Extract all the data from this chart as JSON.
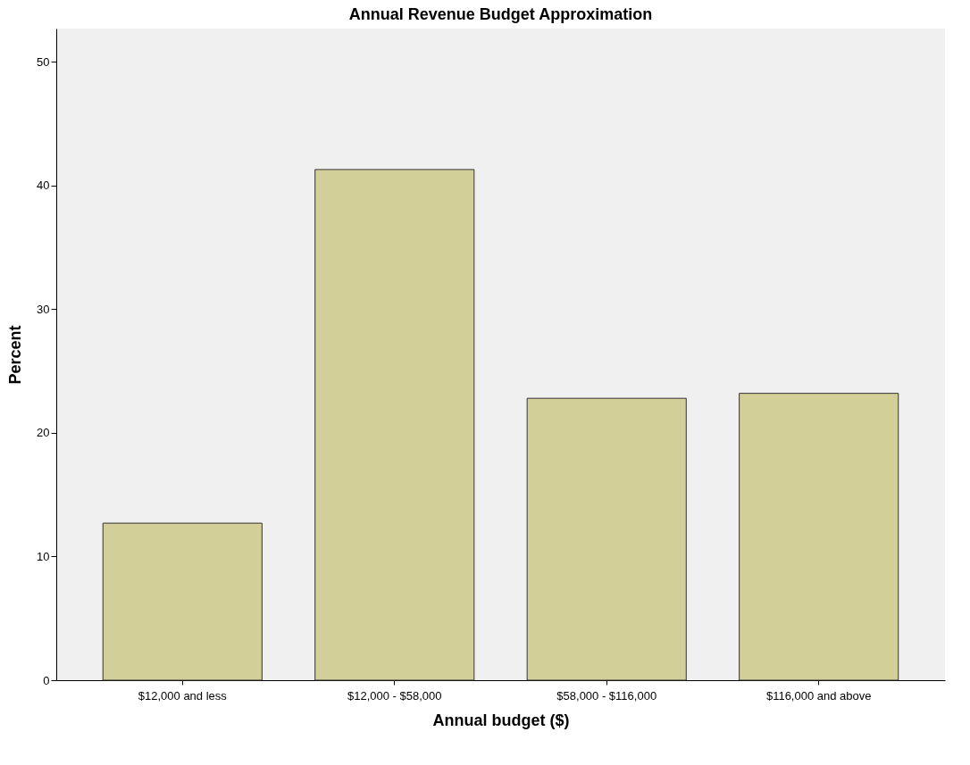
{
  "chart_data": {
    "type": "bar",
    "title": "Annual Revenue Budget Approximation",
    "xlabel": "Annual budget ($)",
    "ylabel": "Percent",
    "categories": [
      "$12,000 and less",
      "$12,000 - $58,000",
      "$58,000 - $116,000",
      "$116,000 and above"
    ],
    "values": [
      12.7,
      41.3,
      22.8,
      23.2
    ],
    "color": "#d3cf98",
    "ylim": [
      0,
      52.7
    ],
    "yticks": [
      0,
      10,
      20,
      30,
      40,
      50
    ],
    "grid": false
  }
}
